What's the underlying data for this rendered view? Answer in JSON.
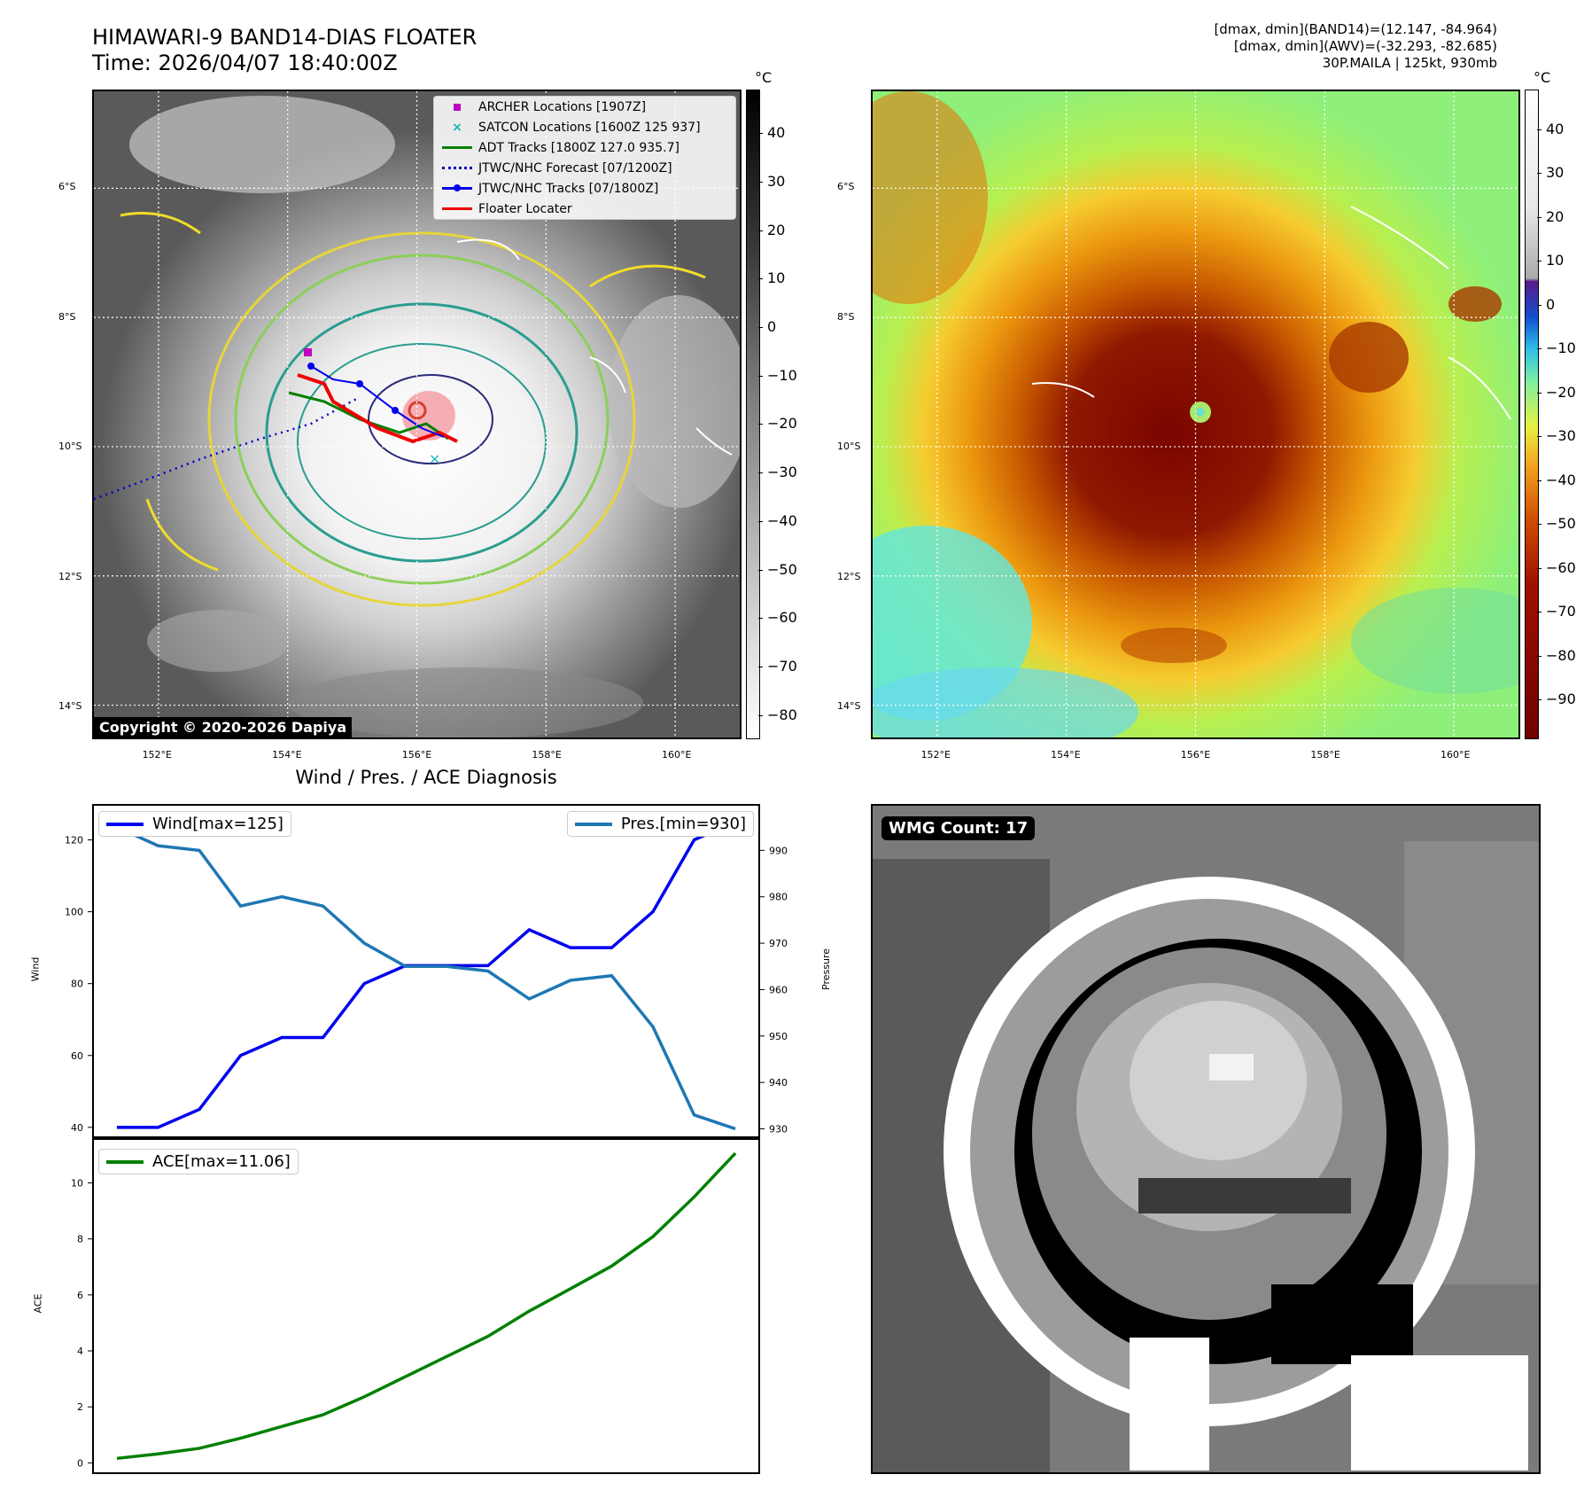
{
  "titles": {
    "main_title": "HIMAWARI-9 BAND14-DIAS FLOATER",
    "time": "Time: 2026/04/07 18:40:00Z",
    "stat1": "[dmax, dmin](BAND14)=(12.147, -84.964)",
    "stat2": "[dmax, dmin](AWV)=(-32.293, -82.685)",
    "stat3": "30P.MAILA | 125kt, 930mb",
    "diag_title": "Wind / Pres. / ACE Diagnosis",
    "copyright": "Copyright © 2020-2026 Dapiya",
    "wmg": "WMG Count: 17"
  },
  "map": {
    "lat_labels": [
      "6°S",
      "8°S",
      "10°S",
      "12°S",
      "14°S"
    ],
    "lon_labels": [
      "152°E",
      "154°E",
      "156°E",
      "158°E",
      "160°E"
    ],
    "lat_values": [
      -6,
      -8,
      -10,
      -12,
      -14
    ],
    "lon_values": [
      152,
      154,
      156,
      158,
      160
    ],
    "extent": {
      "lon": [
        151,
        161
      ],
      "lat": [
        -14.5,
        -4.5
      ]
    }
  },
  "legend": [
    {
      "label": "ARCHER Locations [1907Z]",
      "symbol": "square",
      "color": "#c000c0"
    },
    {
      "label": "SATCON Locations [1600Z 125 937]",
      "symbol": "x",
      "color": "#10b8b8"
    },
    {
      "label": "ADT Tracks [1800Z 127.0 935.7]",
      "symbol": "line",
      "color": "#008000"
    },
    {
      "label": "JTWC/NHC Forecast [07/1200Z]",
      "symbol": "dotted",
      "color": "#0000cc"
    },
    {
      "label": "JTWC/NHC Tracks [07/1800Z]",
      "symbol": "line-dot",
      "color": "#0000ee"
    },
    {
      "label": "Floater Locater",
      "symbol": "line",
      "color": "#ee0000"
    }
  ],
  "colorbar_left": {
    "unit": "°C",
    "ticks": [
      "40",
      "30",
      "20",
      "10",
      "0",
      "−10",
      "−20",
      "−30",
      "−40",
      "−50",
      "−60",
      "−70",
      "−80"
    ],
    "values": [
      40,
      30,
      20,
      10,
      0,
      -10,
      -20,
      -30,
      -40,
      -50,
      -60,
      -70,
      -80
    ],
    "range": [
      -85,
      49
    ]
  },
  "colorbar_right": {
    "unit": "°C",
    "ticks": [
      "40",
      "30",
      "20",
      "10",
      "0",
      "−10",
      "−20",
      "−30",
      "−40",
      "−50",
      "−60",
      "−70",
      "−80",
      "−90"
    ],
    "values": [
      40,
      30,
      20,
      10,
      0,
      -10,
      -20,
      -30,
      -40,
      -50,
      -60,
      -70,
      -80,
      -90
    ],
    "range": [
      -99,
      49
    ]
  },
  "chart_data": [
    {
      "type": "line",
      "x": [
        0,
        1,
        2,
        3,
        4,
        5,
        6,
        7,
        8,
        9,
        10,
        11,
        12,
        13,
        14,
        15
      ],
      "series": [
        {
          "name": "Wind[max=125]",
          "axis": "left",
          "color": "#0000ee",
          "values": [
            40,
            40,
            45,
            60,
            65,
            65,
            80,
            85,
            85,
            85,
            95,
            90,
            90,
            100,
            120,
            125
          ]
        },
        {
          "name": "Pres.[min=930]",
          "axis": "right",
          "color": "#1f77b4",
          "values": [
            995,
            991,
            990,
            978,
            980,
            978,
            970,
            965,
            965,
            964,
            958,
            962,
            963,
            952,
            933,
            930
          ]
        }
      ],
      "ylabel": "Wind",
      "y2label": "Pressure",
      "ylim": [
        37,
        130
      ],
      "y2lim": [
        928,
        1000
      ],
      "yticks": [
        40,
        60,
        80,
        100,
        120
      ],
      "y2ticks": [
        930,
        940,
        950,
        960,
        970,
        980,
        990
      ],
      "legend_wind": "Wind[max=125]",
      "legend_pres": "Pres.[min=930]"
    },
    {
      "type": "line",
      "x": [
        0,
        1,
        2,
        3,
        4,
        5,
        6,
        7,
        8,
        9,
        10,
        11,
        12,
        13,
        14,
        15
      ],
      "series": [
        {
          "name": "ACE[max=11.06]",
          "color": "#008000",
          "values": [
            0.16,
            0.32,
            0.52,
            0.88,
            1.3,
            1.72,
            2.36,
            3.08,
            3.8,
            4.52,
            5.42,
            6.22,
            7.03,
            8.08,
            9.5,
            11.06
          ]
        }
      ],
      "ylabel": "ACE",
      "ylim": [
        -0.4,
        11.6
      ],
      "yticks": [
        0,
        2,
        4,
        6,
        8,
        10
      ],
      "legend_ace": "ACE[max=11.06]"
    }
  ]
}
